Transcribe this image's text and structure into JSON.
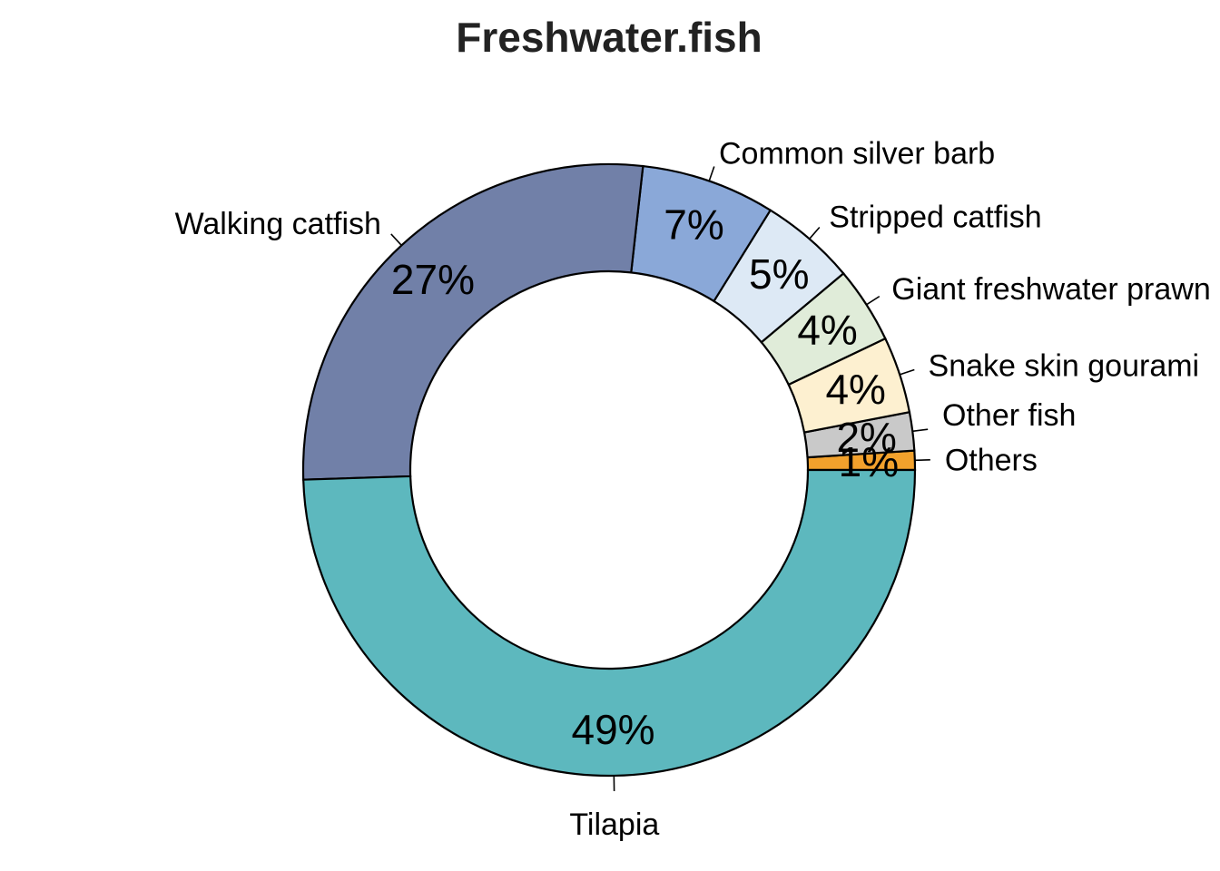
{
  "chart_data": {
    "type": "pie",
    "variant": "donut",
    "title": "Freshwater.fish",
    "start": "3 o'clock, counter-clockwise",
    "slices": [
      {
        "label": "Others",
        "value": 1,
        "pct_label": "1%",
        "color": "#F2A12C"
      },
      {
        "label": "Other fish",
        "value": 2,
        "pct_label": "2%",
        "color": "#C9C9C9"
      },
      {
        "label": "Snake skin gourami",
        "value": 4,
        "pct_label": "4%",
        "color": "#FDF0D0"
      },
      {
        "label": "Giant freshwater prawn",
        "value": 4,
        "pct_label": "4%",
        "color": "#E0ECD9"
      },
      {
        "label": "Stripped catfish",
        "value": 5,
        "pct_label": "5%",
        "color": "#DDE9F5"
      },
      {
        "label": "Common silver barb",
        "value": 7,
        "pct_label": "7%",
        "color": "#8AA8D8"
      },
      {
        "label": "Walking catfish",
        "value": 27,
        "pct_label": "27%",
        "color": "#7180A8"
      },
      {
        "label": "Tilapia",
        "value": 49,
        "pct_label": "49%",
        "color": "#5DB8BE"
      }
    ]
  }
}
